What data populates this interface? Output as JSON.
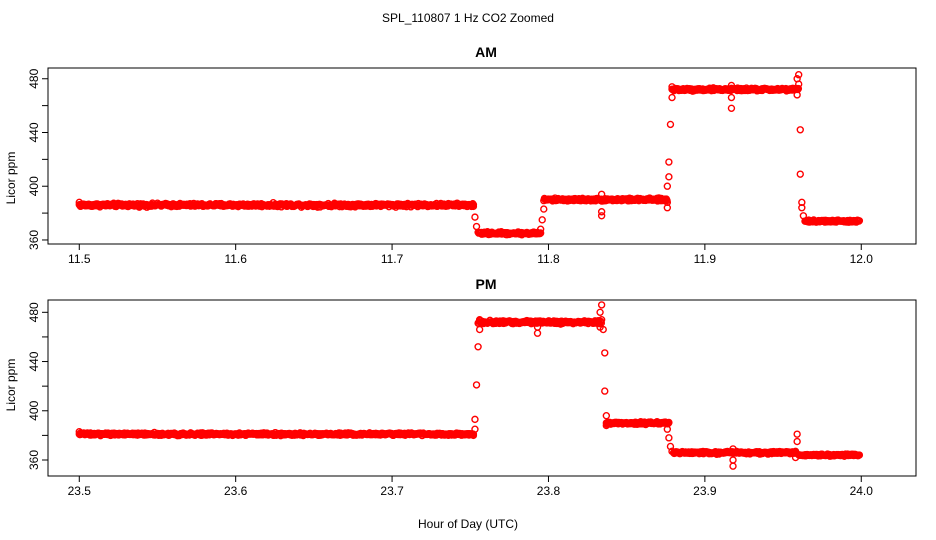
{
  "figure": {
    "suptitle": "SPL_110807  1 Hz CO2 Zoomed",
    "xlabel": "Hour of Day (UTC)"
  },
  "chart_data": [
    {
      "type": "scatter",
      "title": "AM",
      "ylabel": "Licor ppm",
      "xlim": [
        11.48,
        12.035
      ],
      "ylim": [
        357,
        488
      ],
      "xticks": [
        "11.5",
        "11.6",
        "11.7",
        "11.8",
        "11.9",
        "12.0"
      ],
      "xtick_values": [
        11.5,
        11.6,
        11.7,
        11.8,
        11.9,
        12.0
      ],
      "yticks": [
        "360",
        "400",
        "440",
        "480"
      ],
      "ytick_values": [
        360,
        400,
        440,
        480
      ],
      "grid": false,
      "marker": "open-circle",
      "color": "#ff0000",
      "segments": [
        {
          "x_start": 11.5,
          "x_end": 11.752,
          "y": 386,
          "noise": 1.2,
          "step": 0.0004
        },
        {
          "x_start": 11.755,
          "x_end": 11.795,
          "y": 365,
          "noise": 1.0,
          "step": 0.0004
        },
        {
          "x_start": 11.797,
          "x_end": 11.876,
          "y": 390,
          "noise": 1.0,
          "step": 0.0004
        },
        {
          "x_start": 11.879,
          "x_end": 11.96,
          "y": 472,
          "noise": 1.0,
          "step": 0.0004
        },
        {
          "x_start": 11.964,
          "x_end": 11.999,
          "y": 374,
          "noise": 0.8,
          "step": 0.0004
        }
      ],
      "points": [
        [
          11.5,
          388
        ],
        [
          11.752,
          385
        ],
        [
          11.753,
          377
        ],
        [
          11.754,
          370
        ],
        [
          11.795,
          368
        ],
        [
          11.796,
          375
        ],
        [
          11.797,
          383
        ],
        [
          11.834,
          381
        ],
        [
          11.834,
          378
        ],
        [
          11.834,
          394
        ],
        [
          11.876,
          384
        ],
        [
          11.876,
          388
        ],
        [
          11.876,
          400
        ],
        [
          11.877,
          407
        ],
        [
          11.877,
          418
        ],
        [
          11.878,
          446
        ],
        [
          11.879,
          466
        ],
        [
          11.879,
          474
        ],
        [
          11.917,
          475
        ],
        [
          11.917,
          466
        ],
        [
          11.917,
          458
        ],
        [
          11.959,
          468
        ],
        [
          11.959,
          480
        ],
        [
          11.96,
          483
        ],
        [
          11.96,
          476
        ],
        [
          11.961,
          442
        ],
        [
          11.961,
          409
        ],
        [
          11.962,
          388
        ],
        [
          11.962,
          384
        ],
        [
          11.963,
          378
        ]
      ]
    },
    {
      "type": "scatter",
      "title": "PM",
      "ylabel": "Licor ppm",
      "xlim": [
        23.48,
        24.035
      ],
      "ylim": [
        347,
        490
      ],
      "xticks": [
        "23.5",
        "23.6",
        "23.7",
        "23.8",
        "23.9",
        "24.0"
      ],
      "xtick_values": [
        23.5,
        23.6,
        23.7,
        23.8,
        23.9,
        24.0
      ],
      "yticks": [
        "360",
        "400",
        "440",
        "480"
      ],
      "ytick_values": [
        360,
        400,
        440,
        480
      ],
      "grid": false,
      "marker": "open-circle",
      "color": "#ff0000",
      "segments": [
        {
          "x_start": 23.5,
          "x_end": 23.752,
          "y": 381,
          "noise": 1.0,
          "step": 0.0004
        },
        {
          "x_start": 23.755,
          "x_end": 23.834,
          "y": 472,
          "noise": 1.2,
          "step": 0.0004
        },
        {
          "x_start": 23.837,
          "x_end": 23.877,
          "y": 390,
          "noise": 1.0,
          "step": 0.0004
        },
        {
          "x_start": 23.88,
          "x_end": 23.958,
          "y": 366,
          "noise": 1.0,
          "step": 0.0004
        },
        {
          "x_start": 23.96,
          "x_end": 23.999,
          "y": 364,
          "noise": 0.8,
          "step": 0.0004
        }
      ],
      "points": [
        [
          23.5,
          383
        ],
        [
          23.752,
          380
        ],
        [
          23.753,
          385
        ],
        [
          23.753,
          393
        ],
        [
          23.754,
          421
        ],
        [
          23.755,
          452
        ],
        [
          23.756,
          466
        ],
        [
          23.756,
          474
        ],
        [
          23.793,
          468
        ],
        [
          23.793,
          463
        ],
        [
          23.833,
          468
        ],
        [
          23.833,
          480
        ],
        [
          23.834,
          486
        ],
        [
          23.834,
          474
        ],
        [
          23.835,
          466
        ],
        [
          23.836,
          447
        ],
        [
          23.836,
          416
        ],
        [
          23.837,
          396
        ],
        [
          23.837,
          388
        ],
        [
          23.876,
          385
        ],
        [
          23.877,
          378
        ],
        [
          23.878,
          371
        ],
        [
          23.879,
          367
        ],
        [
          23.918,
          360
        ],
        [
          23.918,
          355
        ],
        [
          23.918,
          369
        ],
        [
          23.958,
          362
        ],
        [
          23.958,
          367
        ],
        [
          23.959,
          375
        ],
        [
          23.959,
          381
        ]
      ]
    }
  ]
}
